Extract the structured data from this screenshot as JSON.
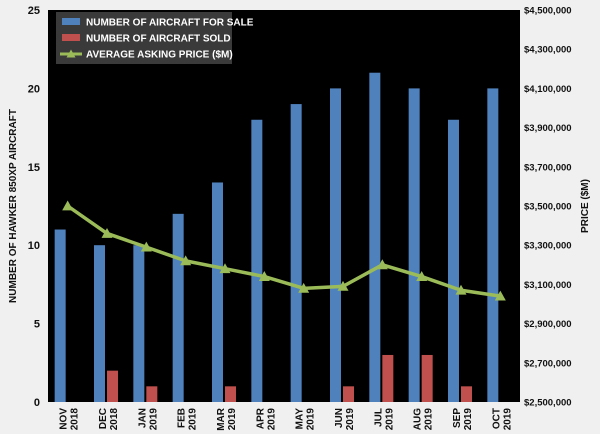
{
  "chart_data": {
    "type": "bar",
    "categories": [
      [
        "NOV",
        "2018"
      ],
      [
        "DEC",
        "2018"
      ],
      [
        "JAN",
        "2019"
      ],
      [
        "FEB",
        "2019"
      ],
      [
        "MAR",
        "2019"
      ],
      [
        "APR",
        "2019"
      ],
      [
        "MAY",
        "2019"
      ],
      [
        "JUN",
        "2019"
      ],
      [
        "JUL",
        "2019"
      ],
      [
        "AUG",
        "2019"
      ],
      [
        "SEP",
        "2019"
      ],
      [
        "OCT",
        "2019"
      ]
    ],
    "series": [
      {
        "name": "NUMBER OF AIRCRAFT FOR SALE",
        "type": "bar",
        "axis": "left",
        "color": "#4f81bd",
        "values": [
          11,
          10,
          10,
          12,
          14,
          18,
          19,
          20,
          21,
          20,
          18,
          20
        ]
      },
      {
        "name": "NUMBER OF AIRCRAFT SOLD",
        "type": "bar",
        "axis": "left",
        "color": "#c0504d",
        "values": [
          0,
          2,
          1,
          0,
          1,
          0,
          0,
          1,
          3,
          3,
          1,
          0
        ]
      },
      {
        "name": "AVERAGE ASKING PRICE ($M)",
        "type": "line",
        "axis": "right",
        "color": "#9bbb59",
        "marker": "triangle",
        "values": [
          3500000,
          3360000,
          3290000,
          3220000,
          3180000,
          3140000,
          3080000,
          3090000,
          3200000,
          3140000,
          3070000,
          3040000
        ]
      }
    ],
    "ylabel": "NUMBER OF HAWKER 850XP AIRCRAFT",
    "y2label": "PRICE ($M)",
    "ylim": [
      0,
      25
    ],
    "yticks": [
      "0",
      "5",
      "10",
      "15",
      "20",
      "25"
    ],
    "y2lim": [
      2500000,
      4500000
    ],
    "y2ticks": [
      "$2,500,000",
      "$2,700,000",
      "$2,900,000",
      "$3,100,000",
      "$3,300,000",
      "$3,500,000",
      "$3,700,000",
      "$3,900,000",
      "$4,100,000",
      "$4,300,000",
      "$4,500,000"
    ],
    "legend_position": "top-left",
    "plot_background": "#000000",
    "grid": false
  }
}
